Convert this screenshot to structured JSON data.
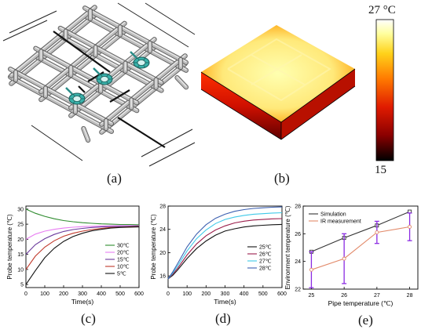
{
  "panel_labels": [
    "(a)",
    "(b)",
    "(c)",
    "(d)",
    "(e)"
  ],
  "colorbar": {
    "max_label": "27 °C",
    "min_label": "15",
    "colors": [
      "#000000",
      "#8b0000",
      "#e01b00",
      "#ff7a00",
      "#ffd21a",
      "#ffff9e",
      "#ffffff"
    ]
  },
  "chart_data": [
    {
      "type": "line",
      "xlabel": "Time(s)",
      "ylabel": "Probe temperature (℃)",
      "xlim": [
        0,
        600
      ],
      "ylim": [
        4,
        31
      ],
      "xticks": [
        0,
        100,
        200,
        300,
        400,
        500,
        600
      ],
      "yticks": [
        5,
        10,
        15,
        20,
        25,
        30
      ],
      "legend_position": "center-right",
      "x": [
        0,
        50,
        100,
        150,
        200,
        250,
        300,
        350,
        400,
        450,
        500,
        550,
        600
      ],
      "series": [
        {
          "name": "30℃",
          "color": "#2e8b2e",
          "values": [
            30.0,
            28.6,
            27.6,
            26.8,
            26.2,
            25.8,
            25.5,
            25.3,
            25.1,
            25.0,
            24.9,
            24.9,
            24.8
          ]
        },
        {
          "name": "20℃",
          "color": "#e87df2",
          "values": [
            20.0,
            21.7,
            22.7,
            23.3,
            23.7,
            24.0,
            24.2,
            24.3,
            24.4,
            24.45,
            24.5,
            24.5,
            24.5
          ]
        },
        {
          "name": "15℃",
          "color": "#6a3a9c",
          "values": [
            15.0,
            18.2,
            20.2,
            21.6,
            22.6,
            23.2,
            23.6,
            23.9,
            24.1,
            24.2,
            24.3,
            24.35,
            24.4
          ]
        },
        {
          "name": "10℃",
          "color": "#c0392b",
          "values": [
            10.0,
            14.4,
            17.4,
            19.5,
            21.0,
            22.0,
            22.7,
            23.2,
            23.6,
            23.9,
            24.0,
            24.1,
            24.2
          ]
        },
        {
          "name": "5℃",
          "color": "#111111",
          "values": [
            5.0,
            9.6,
            13.9,
            17.0,
            19.3,
            20.9,
            22.0,
            22.8,
            23.3,
            23.7,
            23.9,
            24.0,
            24.1
          ]
        }
      ]
    },
    {
      "type": "line",
      "xlabel": "Time(s)",
      "ylabel": "Probe temperature (℃)",
      "xlim": [
        0,
        600
      ],
      "ylim": [
        14,
        28
      ],
      "xticks": [
        0,
        100,
        200,
        300,
        400,
        500,
        600
      ],
      "yticks": [
        16,
        20,
        24,
        28
      ],
      "legend_position": "center-right",
      "x": [
        0,
        25,
        50,
        100,
        150,
        200,
        250,
        300,
        350,
        400,
        450,
        500,
        550,
        600
      ],
      "series": [
        {
          "name": "25℃",
          "color": "#111111",
          "values": [
            15.5,
            16.1,
            17.0,
            19.0,
            20.7,
            22.0,
            23.0,
            23.7,
            24.1,
            24.4,
            24.6,
            24.7,
            24.8,
            24.85
          ]
        },
        {
          "name": "26℃",
          "color": "#9b1d4a",
          "values": [
            15.5,
            16.3,
            17.3,
            19.6,
            21.5,
            22.9,
            23.9,
            24.6,
            25.1,
            25.4,
            25.6,
            25.7,
            25.8,
            25.85
          ]
        },
        {
          "name": "27℃",
          "color": "#3ec9e8",
          "values": [
            15.5,
            16.5,
            17.7,
            20.3,
            22.4,
            23.9,
            25.0,
            25.7,
            26.1,
            26.4,
            26.6,
            26.7,
            26.8,
            26.85
          ]
        },
        {
          "name": "28℃",
          "color": "#3b5fb0",
          "values": [
            15.5,
            16.7,
            18.1,
            21.0,
            23.2,
            24.8,
            25.9,
            26.6,
            27.1,
            27.4,
            27.6,
            27.7,
            27.8,
            27.85
          ]
        }
      ]
    },
    {
      "type": "line",
      "xlabel": "Pipe temperature (℃)",
      "ylabel": "Environment temperature (℃)",
      "xlim": [
        24.75,
        28.25
      ],
      "ylim": [
        22,
        28
      ],
      "xticks": [
        25,
        26,
        27,
        28
      ],
      "yticks": [
        22,
        24,
        26,
        28
      ],
      "legend_position": "top-left",
      "x": [
        25,
        26,
        27,
        28
      ],
      "series": [
        {
          "name": "Simulation",
          "color": "#333333",
          "marker": "square",
          "values": [
            24.7,
            25.7,
            26.6,
            27.6
          ]
        },
        {
          "name": "IR measurement",
          "color": "#e28a6a",
          "marker": "circle",
          "values": [
            23.4,
            24.2,
            26.1,
            26.5
          ],
          "error_bar_color": "#8a2be2",
          "errors": [
            1.3,
            1.8,
            0.8,
            1.0
          ]
        }
      ]
    }
  ]
}
